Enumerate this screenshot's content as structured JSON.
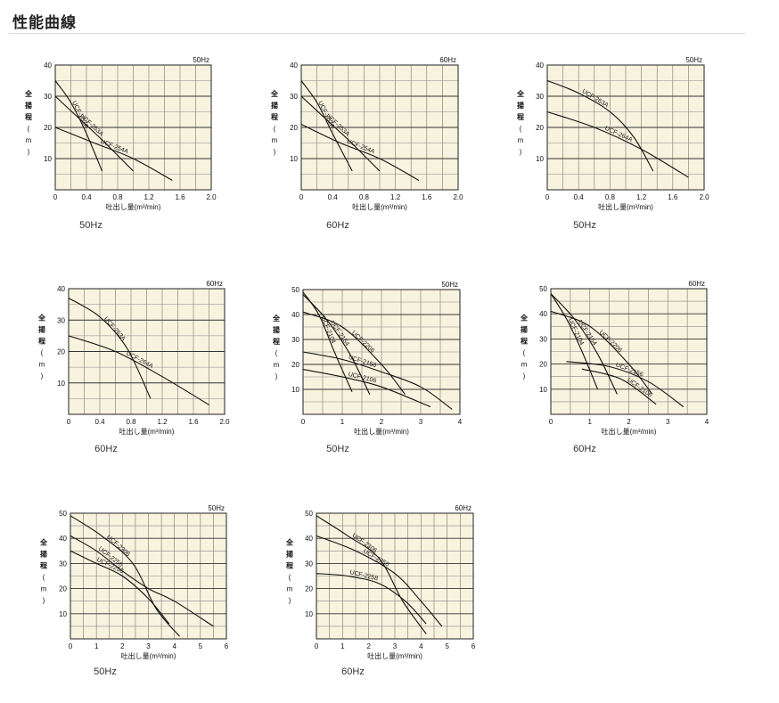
{
  "page": {
    "title": "性能曲線"
  },
  "common": {
    "ylabel": [
      "全",
      "揚",
      "程",
      "(",
      "m",
      ")"
    ],
    "xlabel": "吐出し量(m³/min)",
    "plot_bg": "#f8f3de",
    "line_color": "#111111"
  },
  "chart_data": [
    {
      "type": "line",
      "hz": "50Hz",
      "caption": "50Hz",
      "xlim": [
        0,
        2.0
      ],
      "ylim": [
        0,
        40
      ],
      "xticks": [
        0,
        0.4,
        0.8,
        1.2,
        1.6,
        2.0
      ],
      "xtick_labels": [
        "0",
        "0.4",
        "0.8",
        "1.2",
        "1.6",
        "2.0"
      ],
      "yticks": [
        10,
        20,
        30,
        40
      ],
      "xgrid_step": 0.2,
      "ygrid_step": 5,
      "series": [
        {
          "name": "UCF-252A",
          "x": [
            0,
            0.2,
            0.4,
            0.6
          ],
          "y": [
            35,
            28,
            18,
            6
          ]
        },
        {
          "name": "UCF-253A",
          "x": [
            0,
            0.3,
            0.6,
            1.0
          ],
          "y": [
            30,
            23,
            16,
            6
          ]
        },
        {
          "name": "UCF-254A",
          "x": [
            0,
            0.5,
            1.0,
            1.5
          ],
          "y": [
            20,
            15,
            10,
            3
          ]
        }
      ]
    },
    {
      "type": "line",
      "hz": "60Hz",
      "caption": "60Hz",
      "xlim": [
        0,
        2.0
      ],
      "ylim": [
        0,
        40
      ],
      "xticks": [
        0,
        0.4,
        0.8,
        1.2,
        1.6,
        2.0
      ],
      "xtick_labels": [
        "0",
        "0.4",
        "0.8",
        "1.2",
        "1.6",
        "2.0"
      ],
      "yticks": [
        10,
        20,
        30,
        40
      ],
      "xgrid_step": 0.2,
      "ygrid_step": 5,
      "series": [
        {
          "name": "UCF-252A",
          "x": [
            0,
            0.2,
            0.4,
            0.65
          ],
          "y": [
            35,
            28,
            18,
            6
          ]
        },
        {
          "name": "UCF-253A",
          "x": [
            0,
            0.3,
            0.6,
            1.0
          ],
          "y": [
            30,
            23,
            16,
            6
          ]
        },
        {
          "name": "UCF-254A",
          "x": [
            0,
            0.5,
            1.0,
            1.5
          ],
          "y": [
            21,
            15,
            10,
            3
          ]
        }
      ]
    },
    {
      "type": "line",
      "hz": "50Hz",
      "caption": "50Hz",
      "xlim": [
        0,
        2.0
      ],
      "ylim": [
        0,
        40
      ],
      "xticks": [
        0,
        0.4,
        0.8,
        1.2,
        1.6,
        2.0
      ],
      "xtick_labels": [
        "0",
        "0.4",
        "0.8",
        "1.2",
        "1.6",
        "2.0"
      ],
      "yticks": [
        10,
        20,
        30,
        40
      ],
      "xgrid_step": 0.2,
      "ygrid_step": 5,
      "series": [
        {
          "name": "UCF-263A",
          "x": [
            0,
            0.4,
            0.8,
            1.1,
            1.35
          ],
          "y": [
            35,
            31,
            25,
            17,
            6
          ]
        },
        {
          "name": "UCF-264A",
          "x": [
            0,
            0.6,
            1.2,
            1.8
          ],
          "y": [
            25,
            20,
            13,
            4
          ]
        }
      ]
    },
    {
      "type": "line",
      "hz": "60Hz",
      "caption": "60Hz",
      "xlim": [
        0,
        2.0
      ],
      "ylim": [
        0,
        40
      ],
      "xticks": [
        0,
        0.4,
        0.8,
        1.2,
        1.6,
        2.0
      ],
      "xtick_labels": [
        "0",
        "0.4",
        "0.8",
        "1.2",
        "1.6",
        "2.0"
      ],
      "yticks": [
        10,
        20,
        30,
        40
      ],
      "xgrid_step": 0.2,
      "ygrid_step": 5,
      "series": [
        {
          "name": "UCF-263A",
          "x": [
            0,
            0.4,
            0.75,
            1.05
          ],
          "y": [
            37,
            31,
            21,
            5
          ]
        },
        {
          "name": "UCF-264A",
          "x": [
            0,
            0.6,
            1.2,
            1.8
          ],
          "y": [
            25,
            20,
            12,
            3
          ]
        }
      ]
    },
    {
      "type": "line",
      "hz": "50Hz",
      "caption": "50Hz",
      "xlim": [
        0,
        4
      ],
      "ylim": [
        0,
        50
      ],
      "xticks": [
        0,
        1,
        2,
        3,
        4
      ],
      "xtick_labels": [
        "0",
        "1",
        "2",
        "3",
        "4"
      ],
      "yticks": [
        10,
        20,
        30,
        40,
        50
      ],
      "xgrid_step": 0.5,
      "ygrid_step": 5,
      "series": [
        {
          "name": "UCF-2104",
          "x": [
            0,
            0.4,
            0.8,
            1.25
          ],
          "y": [
            49,
            40,
            25,
            9
          ]
        },
        {
          "name": "UCF-2154",
          "x": [
            0,
            0.6,
            1.2,
            1.7
          ],
          "y": [
            48,
            38,
            24,
            8
          ]
        },
        {
          "name": "UCF-2206",
          "x": [
            0,
            1.0,
            2.0,
            2.6
          ],
          "y": [
            41,
            35,
            20,
            8
          ]
        },
        {
          "name": "UCF-2156",
          "x": [
            0,
            1.0,
            2.0,
            3.0,
            3.8
          ],
          "y": [
            25,
            22,
            17,
            11,
            2
          ]
        },
        {
          "name": "UCF-2106",
          "x": [
            0,
            1.0,
            2.0,
            3.25
          ],
          "y": [
            18,
            15,
            11,
            3
          ]
        }
      ]
    },
    {
      "type": "line",
      "hz": "60Hz",
      "caption": "60Hz",
      "xlim": [
        0,
        4
      ],
      "ylim": [
        0,
        50
      ],
      "xticks": [
        0,
        1,
        2,
        3,
        4
      ],
      "xtick_labels": [
        "0",
        "1",
        "2",
        "3",
        "4"
      ],
      "yticks": [
        10,
        20,
        30,
        40,
        50
      ],
      "xgrid_step": 0.5,
      "ygrid_step": 5,
      "series": [
        {
          "name": "UCF-2104",
          "x": [
            0,
            0.4,
            0.8,
            1.2
          ],
          "y": [
            48,
            38,
            25,
            10
          ]
        },
        {
          "name": "UCF-2154",
          "x": [
            0,
            0.6,
            1.2,
            1.7
          ],
          "y": [
            48,
            38,
            24,
            8
          ]
        },
        {
          "name": "UCF-2206",
          "x": [
            0,
            1.0,
            2.0,
            2.6
          ],
          "y": [
            41,
            35,
            20,
            8
          ]
        },
        {
          "name": "UCF-2156",
          "x": [
            0.4,
            1.5,
            2.5,
            3.4
          ],
          "y": [
            21,
            19,
            13,
            3
          ]
        },
        {
          "name": "UCF-2106",
          "x": [
            0.8,
            1.8,
            2.7
          ],
          "y": [
            18,
            14,
            4
          ]
        }
      ]
    },
    {
      "type": "line",
      "hz": "50Hz",
      "caption": "50Hz",
      "xlim": [
        0,
        6
      ],
      "ylim": [
        0,
        50
      ],
      "xticks": [
        0,
        1,
        2,
        3,
        4,
        5,
        6
      ],
      "xtick_labels": [
        "0",
        "1",
        "2",
        "3",
        "4",
        "5",
        "6"
      ],
      "yticks": [
        10,
        20,
        30,
        40,
        50
      ],
      "xgrid_step": 0.5,
      "ygrid_step": 5,
      "series": [
        {
          "name": "UCF-2306",
          "x": [
            0,
            1.2,
            2.4,
            3.3,
            4.2
          ],
          "y": [
            49,
            41,
            30,
            12,
            1
          ]
        },
        {
          "name": "UCF-2256",
          "x": [
            0,
            1.0,
            2.0,
            3.0,
            4.0,
            5.5
          ],
          "y": [
            41,
            35,
            27,
            20,
            15,
            5
          ]
        },
        {
          "name": "UCF-2256",
          "x": [
            0,
            1.0,
            2.0,
            3.0,
            3.8
          ],
          "y": [
            35,
            30,
            25,
            16,
            6
          ]
        }
      ]
    },
    {
      "type": "line",
      "hz": "60Hz",
      "caption": "60Hz",
      "xlim": [
        0,
        6
      ],
      "ylim": [
        0,
        50
      ],
      "xticks": [
        0,
        1,
        2,
        3,
        4,
        5,
        6
      ],
      "xtick_labels": [
        "0",
        "1",
        "2",
        "3",
        "4",
        "5",
        "6"
      ],
      "yticks": [
        10,
        20,
        30,
        40,
        50
      ],
      "xgrid_step": 0.5,
      "ygrid_step": 5,
      "series": [
        {
          "name": "UCF-2306",
          "x": [
            0,
            1.2,
            2.4,
            3.3,
            4.2
          ],
          "y": [
            49,
            41,
            32,
            15,
            2
          ]
        },
        {
          "name": "UCF-2256",
          "x": [
            0,
            1.5,
            3.0,
            4.0,
            4.8
          ],
          "y": [
            41,
            35,
            26,
            15,
            5
          ]
        },
        {
          "name": "UCF-2258",
          "x": [
            0,
            1.2,
            2.4,
            3.4,
            4.2
          ],
          "y": [
            26,
            25,
            22,
            15,
            6
          ]
        }
      ]
    }
  ]
}
